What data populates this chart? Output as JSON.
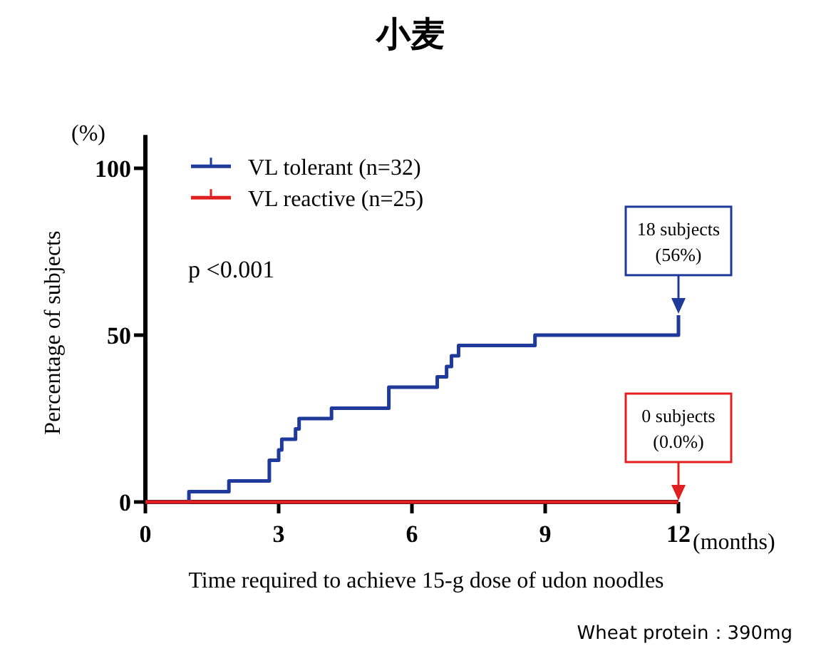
{
  "chart_data": {
    "type": "step",
    "title": "小麦",
    "xlabel": "Time required to achieve 15-g dose of udon noodles",
    "ylabel": "Percentage of subjects",
    "xlim": [
      0,
      12
    ],
    "ylim": [
      0,
      110
    ],
    "xticks": [
      0,
      3,
      6,
      9,
      12
    ],
    "yticks": [
      0,
      50,
      100
    ],
    "grid": false,
    "legend": "top left",
    "series": [
      {
        "name": "VL tolerant (n=32)",
        "color": "#1f3a9a",
        "x": [
          0,
          0.98,
          1.88,
          2.79,
          3.0,
          3.07,
          3.38,
          3.46,
          4.19,
          5.48,
          6.57,
          6.78,
          6.89,
          7.05,
          8.77,
          12
        ],
        "values": [
          0,
          3.1,
          6.3,
          12.5,
          15.6,
          18.8,
          21.9,
          25,
          28.1,
          34.4,
          37.5,
          40.6,
          43.8,
          46.9,
          50,
          56
        ]
      },
      {
        "name": "VL reactive (n=25)",
        "color": "#e02020",
        "x": [
          0,
          12
        ],
        "values": [
          0,
          0
        ]
      }
    ],
    "annotations": [
      "(%)",
      "(months)",
      "p <0.001",
      {
        "text": "18 subjects (56%)",
        "x": 12,
        "y": 56
      },
      {
        "text": "0 subjects (0.0%)",
        "x": 12,
        "y": 0
      },
      "Wheat protein：390mg"
    ]
  }
}
